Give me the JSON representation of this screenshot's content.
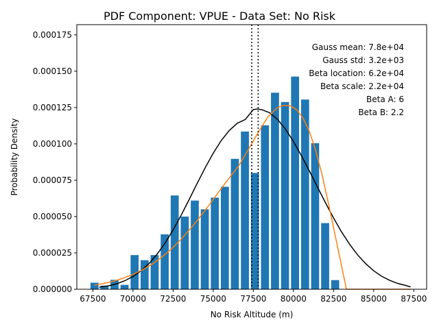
{
  "chart_data": {
    "type": "bar",
    "title": "PDF Component: VPUE - Data Set: No Risk",
    "xlabel": "No Risk Altitude (m)",
    "ylabel": "Probability Density",
    "xlim": [
      66500,
      88300
    ],
    "ylim": [
      0,
      0.000182
    ],
    "x_ticks": [
      67500,
      70000,
      72500,
      75000,
      77500,
      80000,
      82500,
      85000,
      87500
    ],
    "y_ticks": [
      0.0,
      2.5e-05,
      5e-05,
      7.5e-05,
      0.0001,
      0.000125,
      0.00015,
      0.000175
    ],
    "x_tick_labels": [
      "67500",
      "70000",
      "72500",
      "75000",
      "77500",
      "80000",
      "82500",
      "85000",
      "87500"
    ],
    "y_tick_labels": [
      "0.000000",
      "0.000025",
      "0.000050",
      "0.000075",
      "0.000100",
      "0.000125",
      "0.000150",
      "0.000175"
    ],
    "bar_width": 500,
    "bars": {
      "x": [
        67600,
        68225,
        68850,
        69475,
        70100,
        70725,
        71350,
        71975,
        72600,
        73225,
        73850,
        74475,
        75100,
        75725,
        76350,
        76975,
        77600,
        78225,
        78850,
        79475,
        80100,
        80725,
        81350,
        81975,
        82600,
        83225
      ],
      "values": [
        4.5e-06,
        2.5e-06,
        6.5e-06,
        3e-06,
        2.35e-05,
        2e-05,
        2.35e-05,
        3.78e-05,
        6.45e-05,
        5e-05,
        6.1e-05,
        5.5e-05,
        6.3e-05,
        7.05e-05,
        8.97e-05,
        0.0001085,
        8e-05,
        0.0001128,
        0.0001352,
        0.0001288,
        0.0001463,
        0.0001305,
        0.0001005,
        4.55e-05,
        6.3e-06,
        0.0
      ]
    },
    "series": [
      {
        "type": "line",
        "color": "#000000",
        "x": [
          67900,
          68500,
          69000,
          69500,
          70000,
          70500,
          71000,
          71500,
          72000,
          72500,
          73000,
          73500,
          74000,
          74500,
          75000,
          75500,
          76000,
          76500,
          77000,
          77500,
          77750,
          78000,
          78500,
          79000,
          79500,
          80000,
          80500,
          81000,
          81500,
          82000,
          82500,
          83000,
          83500,
          84000,
          84500,
          85000,
          85500,
          86000,
          86500,
          87000,
          87300
        ],
        "values": [
          1.4e-06,
          2.4e-06,
          3.8e-06,
          5.9e-06,
          8.8e-06,
          1.27e-05,
          1.77e-05,
          2.41e-05,
          3.18e-05,
          4.08e-05,
          5.09e-05,
          6.17e-05,
          7.28e-05,
          8.36e-05,
          9.36e-05,
          0.0001023,
          0.0001092,
          0.0001142,
          0.0001168,
          0.0001236,
          0.000124,
          0.0001236,
          0.0001215,
          0.000117,
          0.0001102,
          0.0001016,
          9.18e-05,
          8.12e-05,
          7.02e-05,
          5.94e-05,
          4.9e-05,
          3.94e-05,
          3.09e-05,
          2.36e-05,
          1.76e-05,
          1.27e-05,
          8.9e-06,
          6.1e-06,
          4e-06,
          2.6e-06,
          1.6e-06
        ]
      },
      {
        "type": "line",
        "color": "#ff7f0e",
        "x": [
          67600,
          68200,
          68800,
          69400,
          70000,
          70600,
          71200,
          71800,
          72400,
          73000,
          73600,
          74200,
          74800,
          75400,
          76000,
          76600,
          77200,
          77800,
          78400,
          79000,
          79400,
          79800,
          80200,
          80600,
          81000,
          81400,
          81800,
          82200,
          82600,
          83000,
          83300,
          84000,
          85000,
          86000,
          87000,
          87300
        ],
        "values": [
          2.8e-06,
          4e-06,
          5.6e-06,
          7.6e-06,
          1.02e-05,
          1.34e-05,
          1.73e-05,
          2.21e-05,
          2.78e-05,
          3.44e-05,
          4.19e-05,
          5.01e-05,
          5.88e-05,
          6.78e-05,
          7.66e-05,
          8.51e-05,
          9.63e-05,
          0.0001078,
          0.0001185,
          0.000125,
          0.0001265,
          0.0001262,
          0.0001235,
          0.0001177,
          0.0001083,
          9.5e-05,
          7.8e-05,
          5.8e-05,
          3.7e-05,
          1.6e-05,
          0.0,
          0.0,
          0.0,
          0.0,
          0.0,
          0.0
        ]
      }
    ],
    "vlines": [
      77400,
      77800
    ],
    "annotations": [
      "Gauss mean: 7.8e+04",
      "Gauss std: 3.2e+03",
      "Beta location: 6.2e+04",
      "Beta scale: 2.2e+04",
      "Beta A: 6",
      "Beta B: 2.2"
    ],
    "colors": {
      "bars": "#1f77b4",
      "gauss": "#000000",
      "beta": "#ff7f0e",
      "vlines": "#000000"
    },
    "grid": false
  }
}
